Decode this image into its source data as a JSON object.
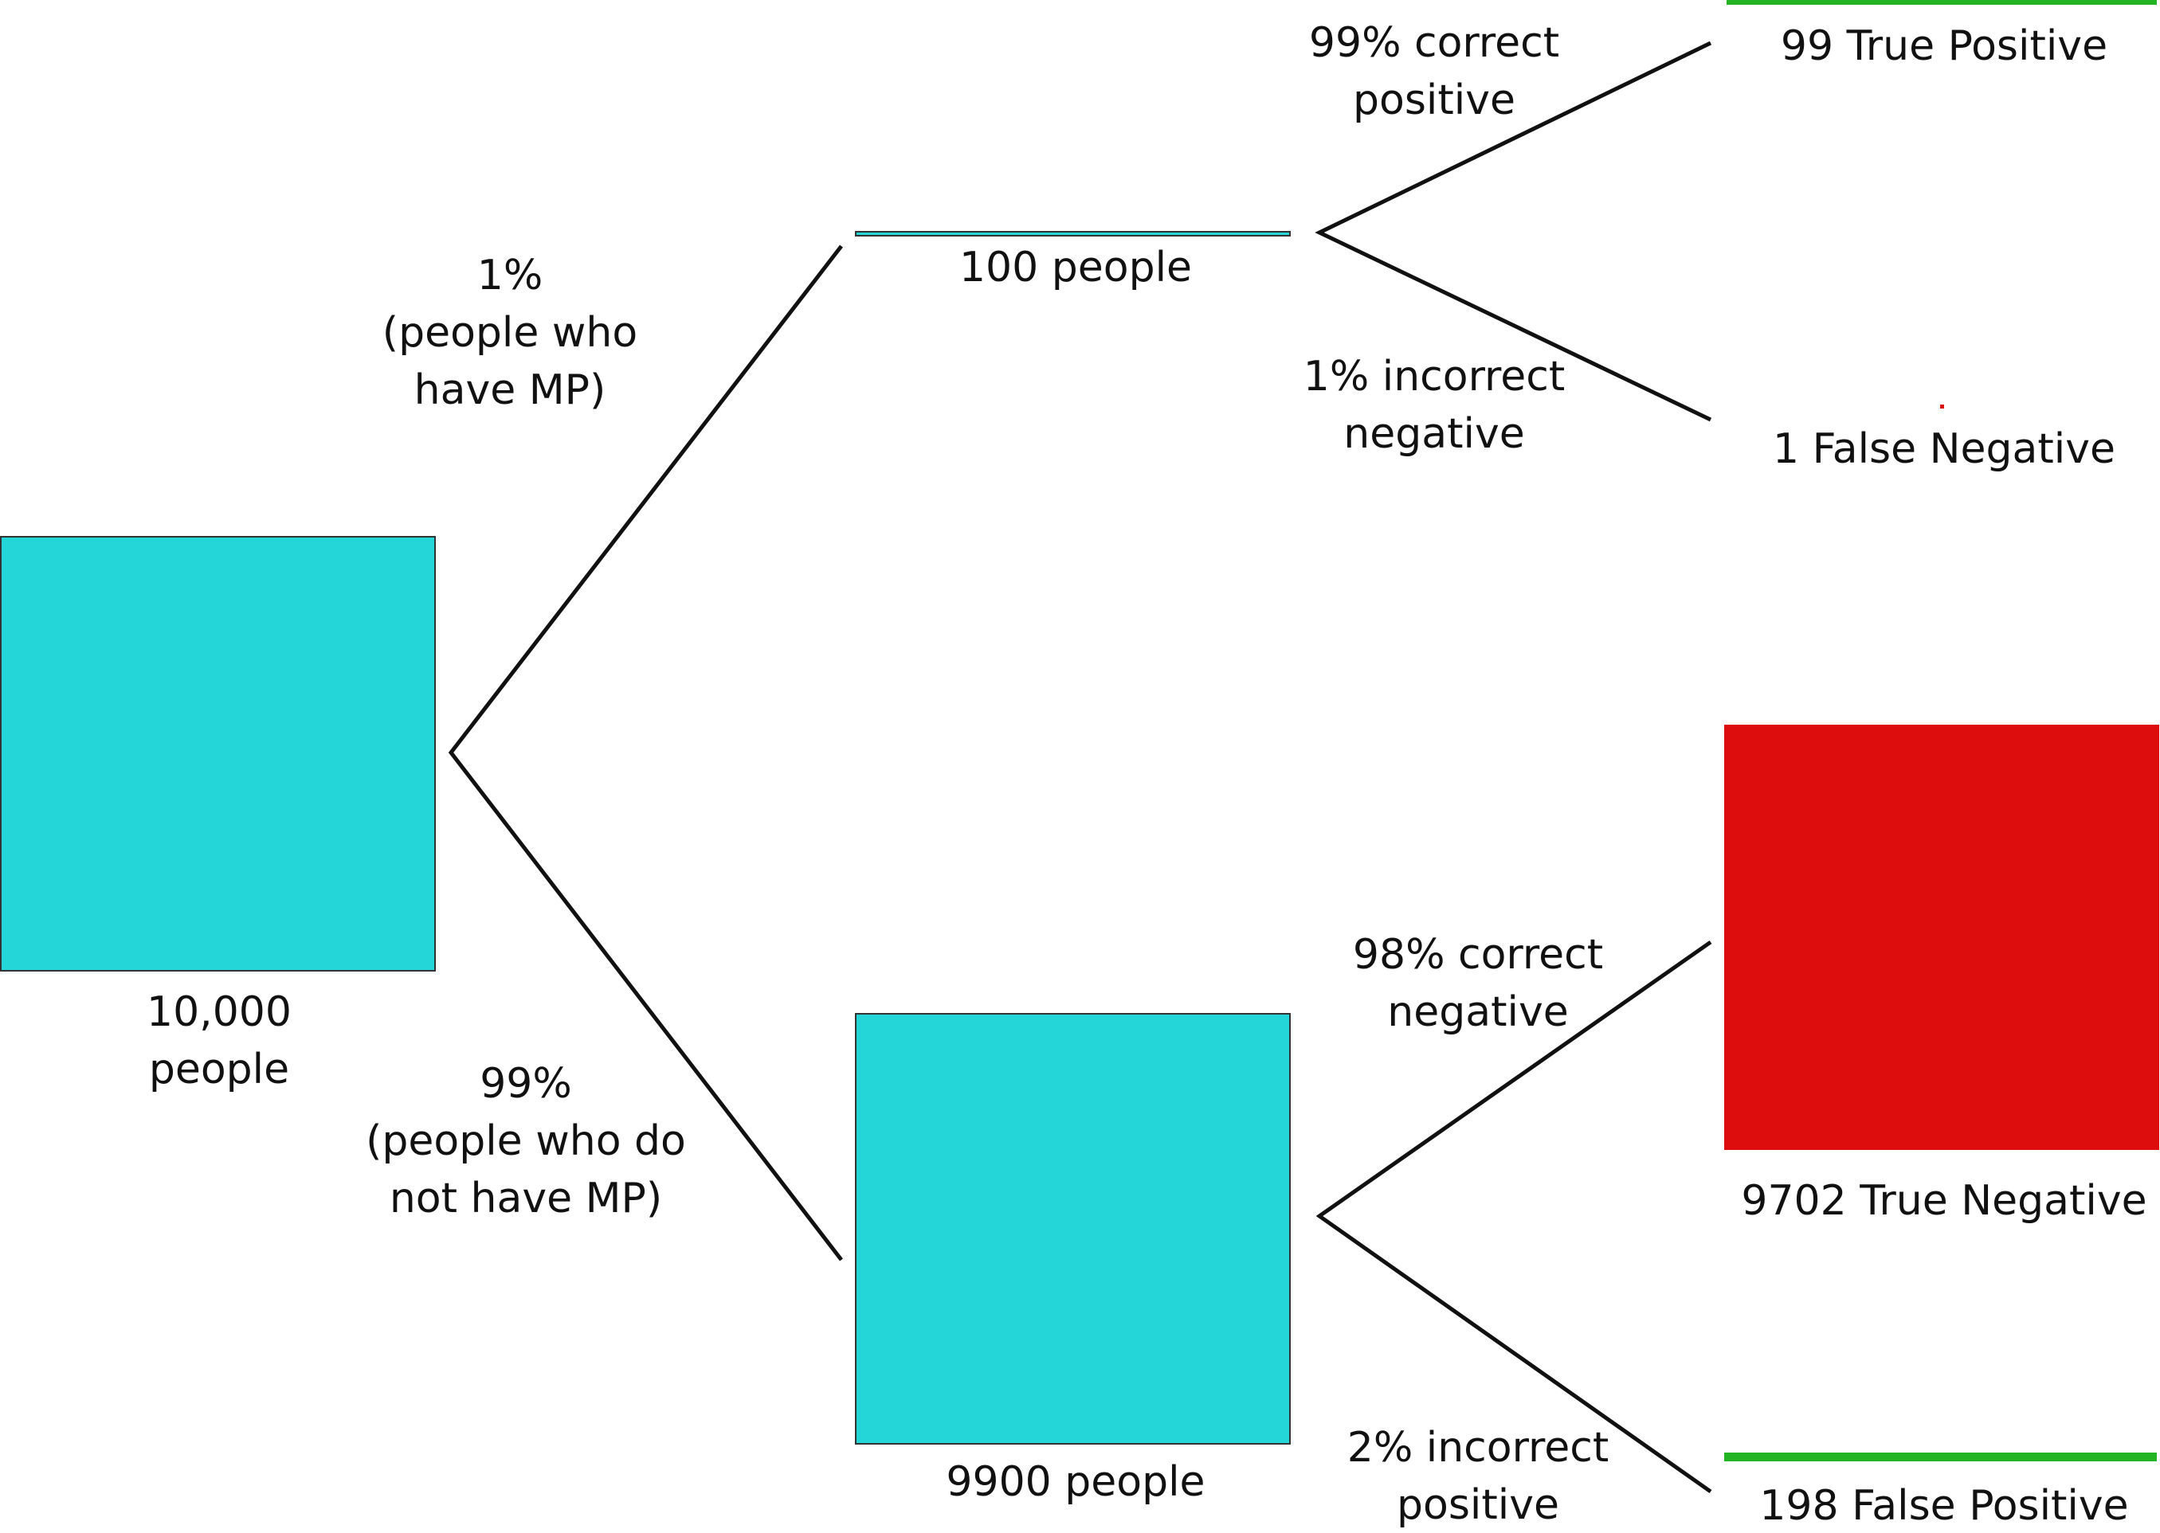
{
  "colors": {
    "population": "#24d6d8",
    "true_positive": "#22b422",
    "false_negative": "#dd1111",
    "true_negative": "#dd0d0d",
    "false_positive": "#22b422",
    "line": "#111111"
  },
  "nodes": {
    "root": {
      "label_line1": "10,000",
      "label_line2": "people",
      "count": 10000
    },
    "have_mp": {
      "label": "100 people",
      "count": 100
    },
    "no_mp": {
      "label": "9900 people",
      "count": 9900
    },
    "true_positive": {
      "label": "99 True Positive",
      "count": 99
    },
    "false_negative": {
      "label": "1 False Negative",
      "count": 1
    },
    "true_negative": {
      "label": "9702 True Negative",
      "count": 9702
    },
    "false_positive": {
      "label": "198 False Positive",
      "count": 198
    }
  },
  "branches": {
    "have_mp": {
      "line1": "1%",
      "line2": "(people who",
      "line3": "have MP)"
    },
    "no_mp": {
      "line1": "99%",
      "line2": "(people who do",
      "line3": "not have MP)"
    },
    "correct_positive": {
      "line1": "99% correct",
      "line2": "positive"
    },
    "incorrect_negative": {
      "line1": "1% incorrect",
      "line2": "negative"
    },
    "correct_negative": {
      "line1": "98% correct",
      "line2": "negative"
    },
    "incorrect_positive": {
      "line1": "2% incorrect",
      "line2": "positive"
    }
  }
}
